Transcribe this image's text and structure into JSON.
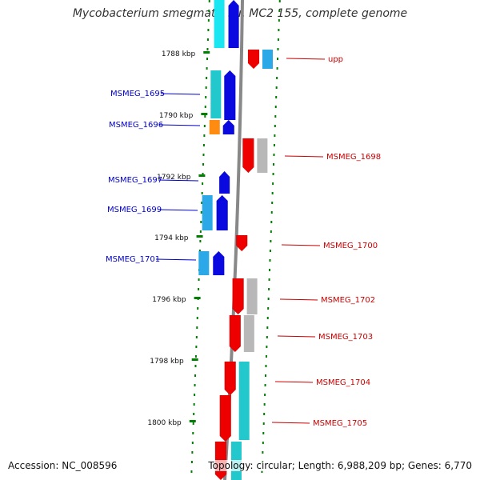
{
  "title": "Mycobacterium smegmatis str. MC2 155, complete genome",
  "footer": {
    "accession": "Accession: NC_008596",
    "summary": "Topology: circular; Length: 6,988,209 bp; Genes: 6,770"
  },
  "colors": {
    "forward_label": "#0000cc",
    "reverse_label": "#cc0000",
    "tick": "#008000",
    "backbone": "#888888",
    "gene_blue": "#0a0ae0",
    "gene_red": "#ee0000",
    "gene_cyan": "#22c8cc",
    "gene_light_blue": "#2aa8e8",
    "gene_orange": "#ff8c10",
    "gene_gray": "#b8b8b8"
  },
  "kbp_ticks": [
    "1788 kbp",
    "1790 kbp",
    "1792 kbp",
    "1794 kbp",
    "1796 kbp",
    "1798 kbp",
    "1800 kbp"
  ],
  "forward_labels": [
    "MSMEG_1695",
    "MSMEG_1696",
    "MSMEG_1697",
    "MSMEG_1699",
    "MSMEG_1701"
  ],
  "reverse_labels": [
    "upp",
    "MSMEG_1698",
    "MSMEG_1700",
    "MSMEG_1702",
    "MSMEG_1703",
    "MSMEG_1704",
    "MSMEG_1705"
  ]
}
